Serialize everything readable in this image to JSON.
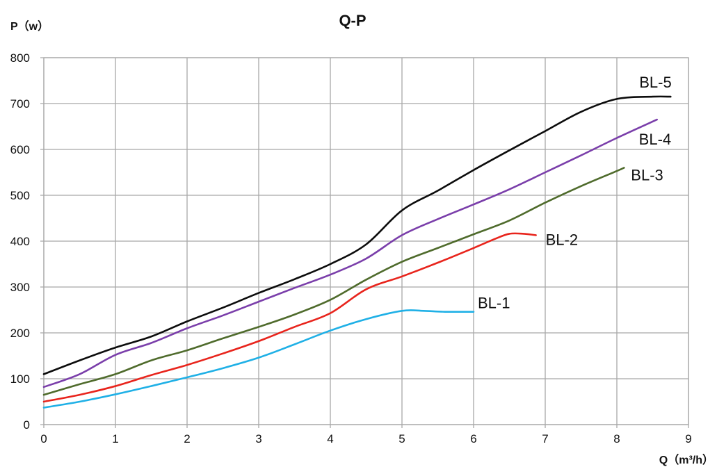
{
  "chart_data": {
    "type": "line",
    "title": "Q-P",
    "ylabel": "P（w）",
    "xlabel": "Q（m³/h）",
    "xlim": [
      0,
      9
    ],
    "ylim": [
      0,
      800
    ],
    "x_ticks": [
      "0",
      "1",
      "2",
      "3",
      "4",
      "5",
      "6",
      "7",
      "8",
      "9"
    ],
    "y_ticks": [
      "0",
      "100",
      "200",
      "300",
      "400",
      "500",
      "600",
      "700",
      "800"
    ],
    "grid": true,
    "legend": "none (labels at line ends)",
    "series": [
      {
        "name": "BL-1",
        "color": "#1fb0e6",
        "x": [
          0,
          0.5,
          1,
          1.5,
          2,
          2.5,
          3,
          3.5,
          4,
          4.5,
          5,
          5.3,
          5.6,
          6
        ],
        "values": [
          37,
          50,
          66,
          84,
          103,
          123,
          146,
          175,
          205,
          230,
          248,
          248,
          246,
          246
        ]
      },
      {
        "name": "BL-2",
        "color": "#e8241c",
        "x": [
          0,
          0.5,
          1,
          1.5,
          2,
          2.5,
          3,
          3.5,
          4,
          4.5,
          5,
          5.5,
          6,
          6.3,
          6.5,
          6.7,
          6.87
        ],
        "values": [
          50,
          65,
          84,
          108,
          130,
          155,
          182,
          213,
          243,
          295,
          323,
          353,
          385,
          405,
          416,
          416,
          413
        ]
      },
      {
        "name": "BL-3",
        "color": "#4f6b2c",
        "x": [
          0,
          0.5,
          1,
          1.5,
          2,
          2.5,
          3,
          3.5,
          4,
          4.5,
          5,
          5.5,
          6,
          6.5,
          7,
          7.5,
          8,
          8.1
        ],
        "values": [
          65,
          88,
          110,
          140,
          162,
          188,
          213,
          240,
          272,
          316,
          355,
          385,
          415,
          445,
          484,
          520,
          553,
          560
        ]
      },
      {
        "name": "BL-4",
        "color": "#7a3eaa",
        "x": [
          0,
          0.5,
          1,
          1.5,
          2,
          2.5,
          3,
          3.5,
          4,
          4.5,
          5,
          5.5,
          6,
          6.5,
          7,
          7.5,
          8,
          8.56
        ],
        "values": [
          82,
          110,
          152,
          178,
          210,
          238,
          268,
          298,
          327,
          362,
          413,
          448,
          480,
          513,
          550,
          587,
          625,
          665
        ]
      },
      {
        "name": "BL-5",
        "color": "#0c0c0c",
        "x": [
          0,
          0.5,
          1,
          1.5,
          2,
          2.5,
          3,
          3.5,
          4,
          4.5,
          5,
          5.5,
          6,
          6.5,
          7,
          7.5,
          8,
          8.5,
          8.75
        ],
        "values": [
          110,
          140,
          168,
          192,
          225,
          255,
          287,
          317,
          350,
          393,
          467,
          510,
          555,
          598,
          640,
          682,
          710,
          715,
          715
        ]
      }
    ]
  }
}
